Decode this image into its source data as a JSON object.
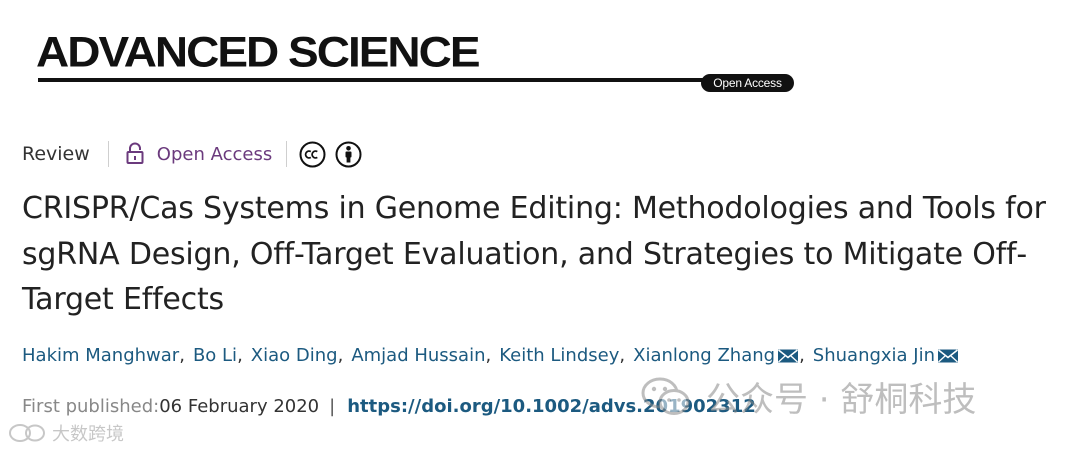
{
  "journal": {
    "name": "ADVANCED SCIENCE",
    "badge": "Open Access"
  },
  "meta": {
    "article_type": "Review",
    "access_label": "Open Access",
    "icons": [
      "lock-icon",
      "creative-commons-icon",
      "attribution-icon"
    ]
  },
  "title": "CRISPR/Cas Systems in Genome Editing: Methodologies and Tools for sgRNA Design, Off‐Target Evaluation, and Strategies to Mitigate Off‐Target Effects",
  "authors": [
    {
      "name": "Hakim Manghwar",
      "separator": ","
    },
    {
      "name": "Bo Li",
      "separator": ","
    },
    {
      "name": "Xiao Ding",
      "separator": ","
    },
    {
      "name": "Amjad Hussain",
      "separator": ","
    },
    {
      "name": "Keith Lindsey",
      "separator": ","
    },
    {
      "name": "Xianlong Zhang",
      "separator": ","
    },
    {
      "name": "Shuangxia Jin",
      "separator": ""
    }
  ],
  "publication": {
    "label": "First published:",
    "date": "06 February 2020",
    "separator": "|",
    "doi": "https://doi.org/10.1002/advs.201902312"
  },
  "watermarks": {
    "right": "公众号 · 舒桐科技",
    "left": "大数跨境"
  },
  "colors": {
    "link": "#1c5a80",
    "open_access": "#6b3a7d",
    "text": "#222222",
    "muted": "#888888"
  }
}
